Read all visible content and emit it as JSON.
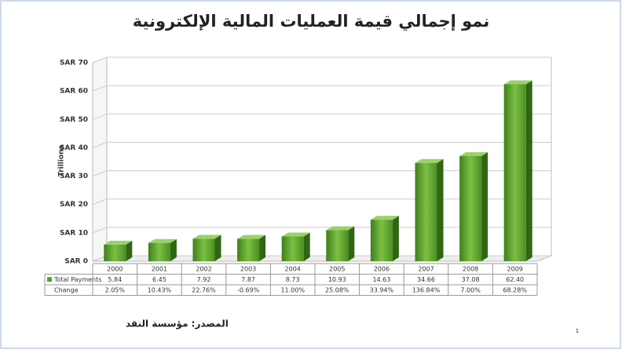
{
  "chart_data": {
    "type": "bar3d",
    "title": "نمو إجمالي قيمة العمليات المالية الإلكترونية",
    "ylabel": "Trillions",
    "source": "المصدر: مؤسسة النقد",
    "page_number": "1",
    "categories": [
      "2000",
      "2001",
      "2002",
      "2003",
      "2004",
      "2005",
      "2006",
      "2007",
      "2008",
      "2009"
    ],
    "series": [
      {
        "name": "Total Payments",
        "color": "#5a9e2a",
        "values": [
          5.84,
          6.45,
          7.92,
          7.87,
          8.73,
          10.93,
          14.63,
          34.66,
          37.08,
          62.4
        ],
        "value_labels": [
          "5.84",
          "6.45",
          "7.92",
          "7.87",
          "8.73",
          "10.93",
          "14.63",
          "34.66",
          "37.08",
          "62.40"
        ]
      }
    ],
    "change_label": "Change",
    "change": [
      "2.05%",
      "10.43%",
      "22.76%",
      "-0.69%",
      "11.00%",
      "25.08%",
      "33.94%",
      "136.84%",
      "7.00%",
      "68.28%"
    ],
    "ylim": [
      0,
      70
    ],
    "yticks": [
      {
        "value": 0,
        "label": "SAR 0"
      },
      {
        "value": 10,
        "label": "SAR 10"
      },
      {
        "value": 20,
        "label": "SAR 20"
      },
      {
        "value": 30,
        "label": "SAR 30"
      },
      {
        "value": 40,
        "label": "SAR 40"
      },
      {
        "value": 50,
        "label": "SAR 50"
      },
      {
        "value": 60,
        "label": "SAR 60"
      },
      {
        "value": 70,
        "label": "SAR 70"
      }
    ],
    "grid": true
  }
}
